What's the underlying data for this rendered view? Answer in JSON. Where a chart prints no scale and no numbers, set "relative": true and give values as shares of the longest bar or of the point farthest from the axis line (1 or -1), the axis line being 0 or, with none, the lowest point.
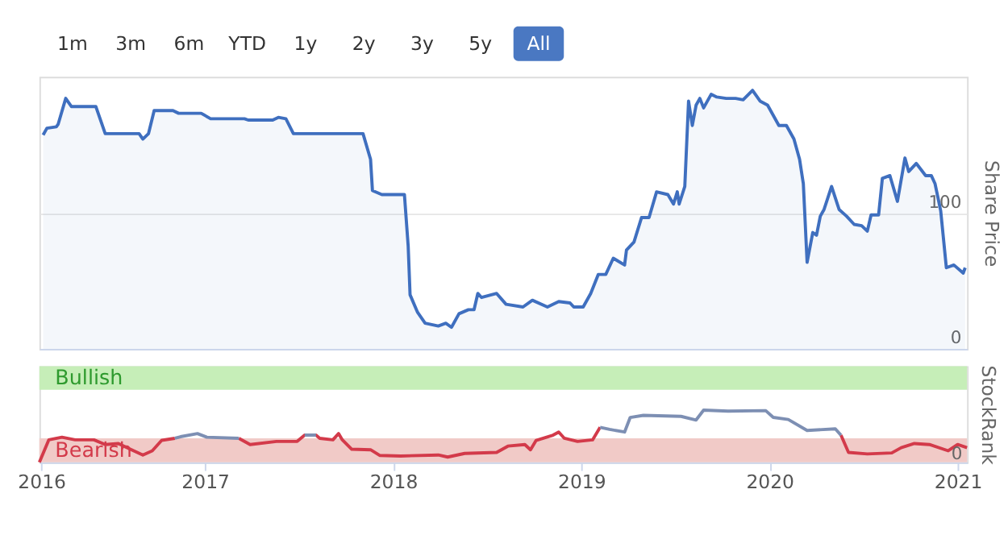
{
  "chart_data": [
    {
      "type": "area",
      "ylabel": "Share Price",
      "annotations": [
        "1m",
        "3m",
        "6m",
        "YTD",
        "1y",
        "2y",
        "3y",
        "5y",
        "All"
      ],
      "xlim": [
        2016.12,
        2021.05
      ],
      "ylim": [
        0,
        201
      ],
      "yticks": [
        0,
        100
      ],
      "grid": "y",
      "tick_labels": "y",
      "x": [
        2016.14,
        2016.16,
        2016.21,
        2016.22,
        2016.26,
        2016.29,
        2016.42,
        2016.47,
        2016.65,
        2016.67,
        2016.7,
        2016.73,
        2016.83,
        2016.86,
        2016.98,
        2017.03,
        2017.21,
        2017.23,
        2017.36,
        2017.39,
        2017.43,
        2017.47,
        2017.84,
        2017.88,
        2017.89,
        2017.94,
        2018.06,
        2018.08,
        2018.09,
        2018.13,
        2018.17,
        2018.24,
        2018.28,
        2018.31,
        2018.35,
        2018.4,
        2018.43,
        2018.45,
        2018.47,
        2018.55,
        2018.6,
        2018.69,
        2018.74,
        2018.82,
        2018.88,
        2018.94,
        2018.96,
        2019.01,
        2019.05,
        2019.09,
        2019.13,
        2019.17,
        2019.23,
        2019.24,
        2019.28,
        2019.32,
        2019.36,
        2019.4,
        2019.46,
        2019.49,
        2019.51,
        2019.52,
        2019.55,
        2019.57,
        2019.59,
        2019.61,
        2019.63,
        2019.65,
        2019.69,
        2019.72,
        2019.77,
        2019.82,
        2019.86,
        2019.91,
        2019.95,
        2019.99,
        2020.05,
        2020.09,
        2020.13,
        2020.16,
        2020.18,
        2020.2,
        2020.23,
        2020.25,
        2020.27,
        2020.29,
        2020.33,
        2020.37,
        2020.41,
        2020.45,
        2020.49,
        2020.52,
        2020.54,
        2020.58,
        2020.6,
        2020.64,
        2020.68,
        2020.72,
        2020.74,
        2020.78,
        2020.83,
        2020.86,
        2020.88,
        2020.91,
        2020.94,
        2020.98,
        2021.03,
        2021.04
      ],
      "series": [
        {
          "color": "#3f6fbf",
          "values": [
            158,
            163,
            164,
            166,
            185,
            179,
            179,
            159,
            159,
            155,
            159,
            176,
            176,
            174,
            174,
            170,
            170,
            169,
            169,
            171,
            170,
            159,
            159,
            140,
            117,
            114,
            114,
            76,
            40,
            27,
            19,
            17,
            19,
            16,
            26,
            29,
            29,
            41,
            38,
            41,
            33,
            31,
            36,
            31,
            35,
            34,
            31,
            31,
            41,
            55,
            55,
            67,
            62,
            73,
            79,
            97,
            97,
            116,
            114,
            107,
            116,
            107,
            120,
            183,
            165,
            180,
            185,
            178,
            188,
            186,
            185,
            185,
            184,
            191,
            183,
            180,
            165,
            165,
            155,
            140,
            122,
            64,
            86,
            84,
            98,
            103,
            120,
            103,
            98,
            92,
            91,
            87,
            99,
            99,
            126,
            128,
            109,
            141,
            131,
            137,
            128,
            128,
            122,
            102,
            60,
            62,
            56,
            60
          ]
        }
      ]
    },
    {
      "type": "line",
      "ylabel": "StockRank",
      "relative": true,
      "annotations": [
        "0"
      ],
      "xlim": [
        2016.12,
        2021.05
      ],
      "tick_labels": "x",
      "xticks": [
        {
          "value": 2016.13,
          "label": "2016"
        },
        2017,
        2018,
        2019,
        2020,
        2021
      ],
      "bands": [
        {
          "axis": "y",
          "from": 1.39,
          "to": 1.84,
          "label": "Bullish",
          "color": "#c6eeb8"
        },
        {
          "axis": "y",
          "from": 0,
          "to": 0.46,
          "label": "Bearish",
          "color": "#f1cac7"
        }
      ],
      "x": [
        2016.12,
        2016.17,
        2016.24,
        2016.31,
        2016.41,
        2016.47,
        2016.54,
        2016.61,
        2016.67,
        2016.72,
        2016.77,
        2016.84,
        2016.87,
        2016.96,
        2017.01,
        2017.18,
        2017.24,
        2017.38,
        2017.49,
        2017.53,
        2017.59,
        2017.61,
        2017.68,
        2017.71,
        2017.73,
        2017.78,
        2017.88,
        2017.93,
        2018.04,
        2018.24,
        2018.29,
        2018.38,
        2018.55,
        2018.61,
        2018.7,
        2018.73,
        2018.76,
        2018.85,
        2018.88,
        2018.91,
        2018.98,
        2019.06,
        2019.1,
        2019.15,
        2019.23,
        2019.26,
        2019.33,
        2019.53,
        2019.61,
        2019.65,
        2019.78,
        2019.98,
        2020.02,
        2020.1,
        2020.2,
        2020.35,
        2020.38,
        2020.42,
        2020.52,
        2020.65,
        2020.7,
        2020.77,
        2020.85,
        2020.95,
        2021.0,
        2021.05
      ],
      "series": [
        {
          "color": "#d33a4a",
          "values": [
            0,
            0.43,
            0.48,
            0.43,
            0.43,
            0.34,
            0.36,
            0.24,
            0.14,
            0.22,
            0.42,
            0.46,
            null,
            null,
            null,
            0.46,
            0.34,
            0.4,
            0.4,
            0.52,
            0.52,
            0.46,
            0.43,
            0.55,
            0.43,
            0.25,
            0.24,
            0.13,
            0.12,
            0.14,
            0.1,
            0.17,
            0.19,
            0.31,
            0.34,
            0.24,
            0.42,
            0.52,
            0.58,
            0.46,
            0.4,
            0.43,
            0.67,
            null,
            null,
            null,
            null,
            null,
            null,
            null,
            null,
            null,
            null,
            null,
            null,
            null,
            0.52,
            0.19,
            0.16,
            0.18,
            0.28,
            0.36,
            0.34,
            0.22,
            0.34,
            0.28
          ]
        },
        {
          "color": "#7d8fb3",
          "values": [
            null,
            null,
            null,
            null,
            null,
            null,
            null,
            null,
            null,
            null,
            null,
            0.46,
            0.49,
            0.55,
            0.48,
            0.46,
            null,
            null,
            null,
            0.52,
            0.52,
            null,
            null,
            null,
            null,
            null,
            null,
            null,
            null,
            null,
            null,
            null,
            null,
            null,
            null,
            null,
            null,
            null,
            null,
            null,
            null,
            null,
            0.67,
            0.63,
            0.58,
            0.86,
            0.9,
            0.88,
            0.81,
            1.0,
            0.98,
            0.99,
            0.86,
            0.82,
            0.61,
            0.64,
            0.52,
            null,
            null,
            null,
            null,
            null,
            null,
            null,
            null,
            null
          ]
        }
      ]
    }
  ]
}
